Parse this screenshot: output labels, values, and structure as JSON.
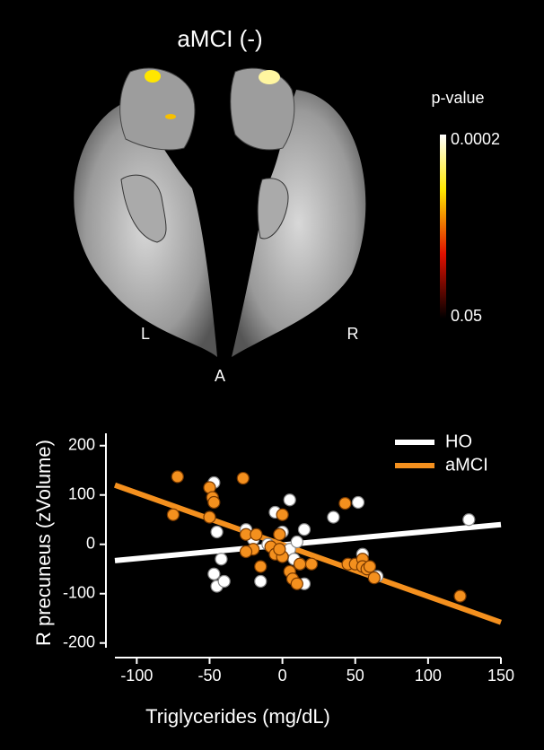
{
  "brain_panel": {
    "title": "aMCI (-)",
    "colorbar_label": "p-value",
    "colorbar_top": "0.0002",
    "colorbar_bottom": "0.05",
    "left_label": "L",
    "right_label": "R",
    "anterior_label": "A"
  },
  "chart_data": {
    "type": "scatter",
    "xlabel": "Triglycerides (mg/dL)",
    "ylabel": "R precuneus (zVolume)",
    "xlim": [
      -115,
      150
    ],
    "xticks": [
      -100,
      -50,
      0,
      50,
      100,
      150
    ],
    "ylim": [
      -215,
      225
    ],
    "yticks": [
      -200,
      -100,
      0,
      100,
      200
    ],
    "legend": "upper right",
    "series": [
      {
        "name": "HO",
        "color": "#ffffff",
        "x": [
          -47,
          -45,
          -42,
          -47,
          -45,
          -40,
          -25,
          -15,
          -5,
          5,
          5,
          10,
          12,
          15,
          15,
          8,
          -10,
          -20,
          35,
          52,
          55,
          58,
          65,
          0,
          128
        ],
        "values": [
          125,
          25,
          -30,
          -60,
          -85,
          -75,
          30,
          -75,
          65,
          -10,
          90,
          5,
          -40,
          30,
          -80,
          -30,
          0,
          10,
          55,
          85,
          -20,
          -50,
          -65,
          25,
          50
        ],
        "fit_x": [
          -115,
          150
        ],
        "fit_values": [
          -33,
          40
        ]
      },
      {
        "name": "aMCI",
        "color": "#f4901e",
        "x": [
          -75,
          -72,
          -50,
          -48,
          -47,
          -50,
          -27,
          -25,
          -20,
          -18,
          -25,
          -8,
          0,
          -5,
          0,
          -2,
          5,
          7,
          10,
          12,
          20,
          -15,
          43,
          45,
          50,
          55,
          55,
          58,
          60,
          63,
          122,
          -2
        ],
        "values": [
          60,
          137,
          115,
          95,
          85,
          55,
          134,
          20,
          -10,
          20,
          -15,
          -5,
          60,
          -20,
          -25,
          20,
          -55,
          -70,
          -80,
          -40,
          -40,
          -45,
          83,
          -40,
          -40,
          -30,
          -45,
          -50,
          -45,
          -68,
          -105,
          -10
        ],
        "fit_x": [
          -115,
          150
        ],
        "fit_values": [
          120,
          -158
        ]
      }
    ]
  }
}
